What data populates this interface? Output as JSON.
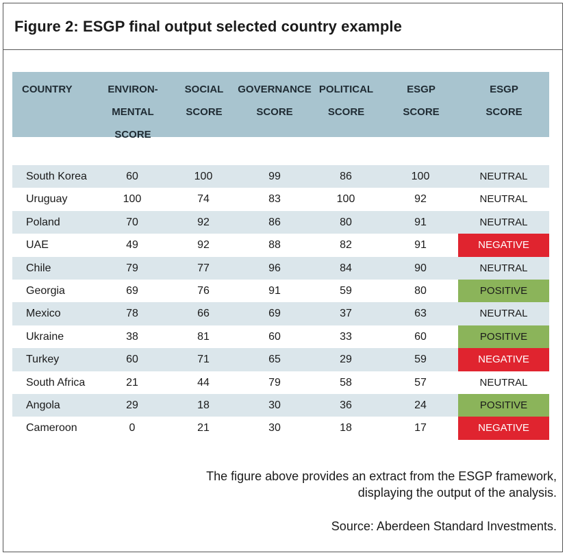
{
  "title": "Figure 2: ESGP final output selected country example",
  "headers": [
    {
      "lines": [
        "COUNTRY"
      ]
    },
    {
      "lines": [
        "ENVIRON-",
        "MENTAL",
        "SCORE"
      ]
    },
    {
      "lines": [
        "SOCIAL",
        "SCORE"
      ]
    },
    {
      "lines": [
        "GOVERNANCE",
        "SCORE"
      ]
    },
    {
      "lines": [
        "POLITICAL",
        "SCORE"
      ]
    },
    {
      "lines": [
        "ESGP",
        "SCORE"
      ]
    },
    {
      "lines": [
        "ESGP",
        "SCORE"
      ]
    }
  ],
  "rows": [
    {
      "country": "South Korea",
      "env": "60",
      "social": "100",
      "gov": "99",
      "pol": "86",
      "esgp": "100",
      "outcome": "NEUTRAL"
    },
    {
      "country": "Uruguay",
      "env": "100",
      "social": "74",
      "gov": "83",
      "pol": "100",
      "esgp": "92",
      "outcome": "NEUTRAL"
    },
    {
      "country": "Poland",
      "env": "70",
      "social": "92",
      "gov": "86",
      "pol": "80",
      "esgp": "91",
      "outcome": "NEUTRAL"
    },
    {
      "country": "UAE",
      "env": "49",
      "social": "92",
      "gov": "88",
      "pol": "82",
      "esgp": "91",
      "outcome": "NEGATIVE"
    },
    {
      "country": "Chile",
      "env": "79",
      "social": "77",
      "gov": "96",
      "pol": "84",
      "esgp": "90",
      "outcome": "NEUTRAL"
    },
    {
      "country": "Georgia",
      "env": "69",
      "social": "76",
      "gov": "91",
      "pol": "59",
      "esgp": "80",
      "outcome": "POSITIVE"
    },
    {
      "country": "Mexico",
      "env": "78",
      "social": "66",
      "gov": "69",
      "pol": "37",
      "esgp": "63",
      "outcome": "NEUTRAL"
    },
    {
      "country": "Ukraine",
      "env": "38",
      "social": "81",
      "gov": "60",
      "pol": "33",
      "esgp": "60",
      "outcome": "POSITIVE"
    },
    {
      "country": "Turkey",
      "env": "60",
      "social": "71",
      "gov": "65",
      "pol": "29",
      "esgp": "59",
      "outcome": "NEGATIVE"
    },
    {
      "country": "South Africa",
      "env": "21",
      "social": "44",
      "gov": "79",
      "pol": "58",
      "esgp": "57",
      "outcome": "NEUTRAL"
    },
    {
      "country": "Angola",
      "env": "29",
      "social": "18",
      "gov": "30",
      "pol": "36",
      "esgp": "24",
      "outcome": "POSITIVE"
    },
    {
      "country": "Cameroon",
      "env": "0",
      "social": "21",
      "gov": "30",
      "pol": "18",
      "esgp": "17",
      "outcome": "NEGATIVE"
    }
  ],
  "colors": {
    "header_bg": "#a8c4cf",
    "row_alt": "#dbe6eb",
    "negative": "#e0242f",
    "positive": "#8bb45a"
  },
  "caption": "The figure above provides an extract from the ESGP framework, displaying the output of the analysis.",
  "source": "Source: Aberdeen Standard Investments."
}
